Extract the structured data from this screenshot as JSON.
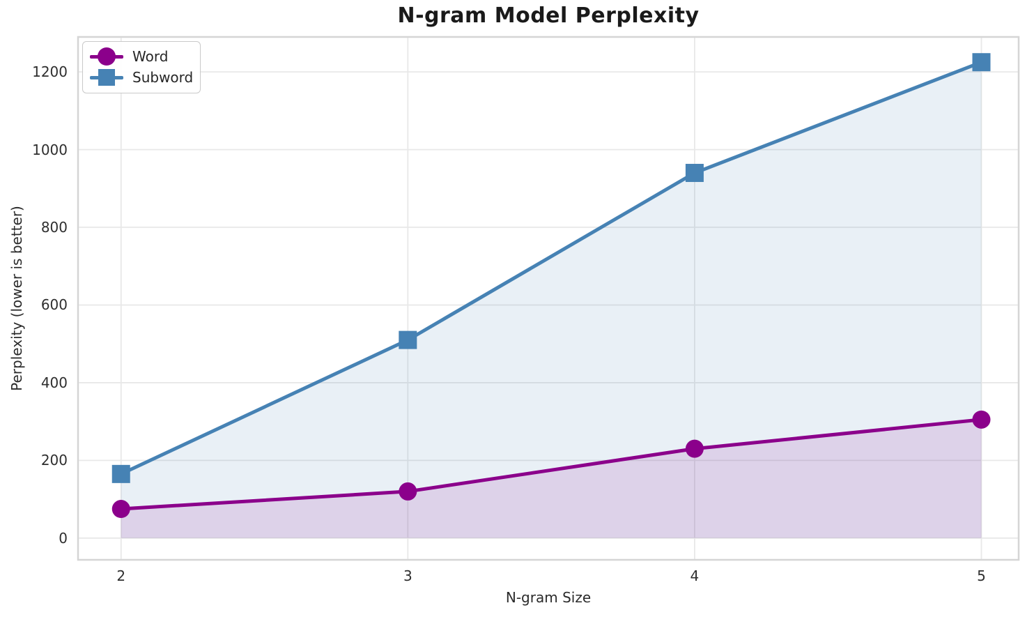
{
  "chart_data": {
    "type": "line",
    "title": "N-gram Model Perplexity",
    "xlabel": "N-gram Size",
    "ylabel": "Perplexity (lower is better)",
    "x": [
      2,
      3,
      4,
      5
    ],
    "series": [
      {
        "name": "Word",
        "values": [
          75,
          120,
          230,
          305
        ],
        "color": "#8B008B",
        "marker": "circle",
        "area_fill": true,
        "fill_alpha": 0.12
      },
      {
        "name": "Subword",
        "values": [
          165,
          510,
          940,
          1225
        ],
        "color": "#4682B4",
        "marker": "square",
        "area_fill": true,
        "fill_alpha": 0.12
      }
    ],
    "xticks": [
      2,
      3,
      4,
      5
    ],
    "yticks": [
      0,
      200,
      400,
      600,
      800,
      1000,
      1200
    ],
    "xlim": [
      1.85,
      5.13
    ],
    "ylim": [
      -56,
      1290
    ],
    "grid": true,
    "legend_position": "upper-left",
    "line_width": 5,
    "marker_size": 26,
    "colors": {
      "grid": "#e8e8e8",
      "axes_border": "#d5d5d5",
      "tick_text": "#2e2e2e",
      "title_text": "#1a1a1a",
      "background": "#ffffff"
    }
  }
}
